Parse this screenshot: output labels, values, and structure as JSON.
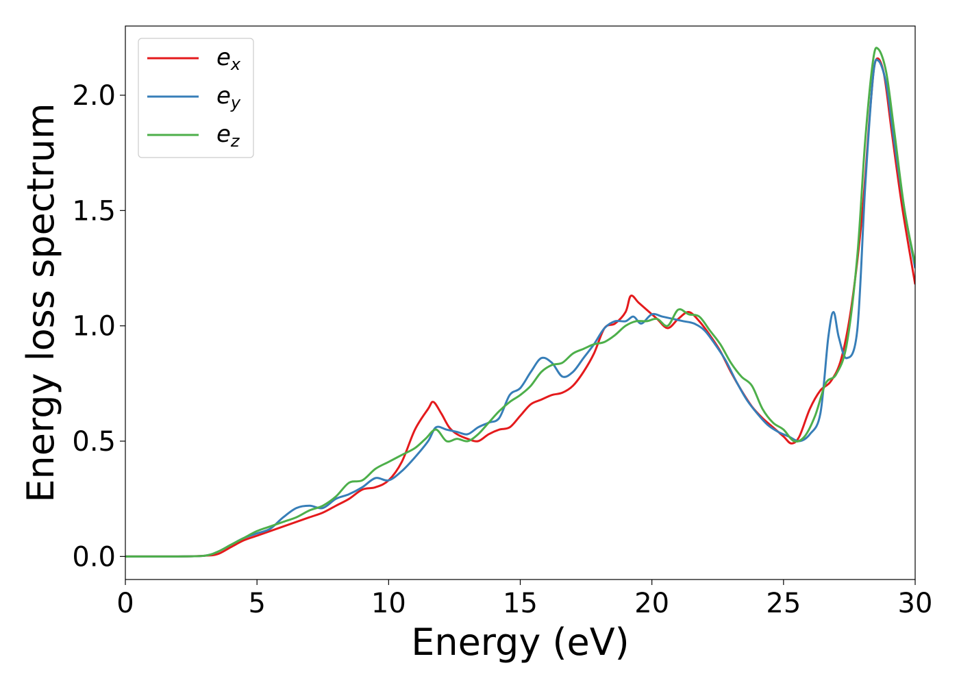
{
  "chart_data": {
    "type": "line",
    "xlabel": "Energy (eV)",
    "ylabel": "Energy loss spectrum",
    "xlim": [
      0,
      30
    ],
    "ylim": [
      -0.1,
      2.3
    ],
    "x_ticks": [
      0,
      5,
      10,
      15,
      20,
      25,
      30
    ],
    "y_ticks": [
      0.0,
      0.5,
      1.0,
      1.5,
      2.0
    ],
    "x_tick_labels": [
      "0",
      "5",
      "10",
      "15",
      "20",
      "25",
      "30"
    ],
    "y_tick_labels": [
      "0.0",
      "0.5",
      "1.0",
      "1.5",
      "2.0"
    ],
    "grid": false,
    "legend_position": "top-left",
    "series": [
      {
        "name": "e_x",
        "label_base": "e",
        "label_sub": "x",
        "color": "#e41a1c",
        "points": [
          [
            0,
            0
          ],
          [
            1,
            0
          ],
          [
            2,
            0
          ],
          [
            3,
            0.003
          ],
          [
            3.5,
            0.01
          ],
          [
            4,
            0.04
          ],
          [
            4.5,
            0.07
          ],
          [
            5,
            0.09
          ],
          [
            5.5,
            0.11
          ],
          [
            6,
            0.13
          ],
          [
            6.5,
            0.15
          ],
          [
            7,
            0.17
          ],
          [
            7.5,
            0.19
          ],
          [
            8,
            0.22
          ],
          [
            8.5,
            0.25
          ],
          [
            9,
            0.29
          ],
          [
            9.5,
            0.3
          ],
          [
            10,
            0.33
          ],
          [
            10.5,
            0.41
          ],
          [
            11,
            0.55
          ],
          [
            11.5,
            0.64
          ],
          [
            11.7,
            0.67
          ],
          [
            12,
            0.62
          ],
          [
            12.3,
            0.56
          ],
          [
            12.6,
            0.53
          ],
          [
            13,
            0.51
          ],
          [
            13.4,
            0.5
          ],
          [
            13.8,
            0.53
          ],
          [
            14.2,
            0.55
          ],
          [
            14.6,
            0.56
          ],
          [
            15,
            0.61
          ],
          [
            15.4,
            0.66
          ],
          [
            15.8,
            0.68
          ],
          [
            16.2,
            0.7
          ],
          [
            16.6,
            0.71
          ],
          [
            17,
            0.74
          ],
          [
            17.4,
            0.8
          ],
          [
            17.8,
            0.88
          ],
          [
            18.2,
            0.99
          ],
          [
            18.6,
            1.01
          ],
          [
            19,
            1.06
          ],
          [
            19.2,
            1.13
          ],
          [
            19.5,
            1.1
          ],
          [
            19.9,
            1.06
          ],
          [
            20.2,
            1.03
          ],
          [
            20.6,
            0.99
          ],
          [
            21,
            1.03
          ],
          [
            21.4,
            1.06
          ],
          [
            21.8,
            1.02
          ],
          [
            22.2,
            0.96
          ],
          [
            22.6,
            0.89
          ],
          [
            23,
            0.8
          ],
          [
            23.4,
            0.72
          ],
          [
            23.8,
            0.65
          ],
          [
            24.2,
            0.6
          ],
          [
            24.6,
            0.56
          ],
          [
            25,
            0.52
          ],
          [
            25.3,
            0.49
          ],
          [
            25.6,
            0.52
          ],
          [
            26,
            0.64
          ],
          [
            26.4,
            0.72
          ],
          [
            26.8,
            0.76
          ],
          [
            27.2,
            0.86
          ],
          [
            27.6,
            1.1
          ],
          [
            28,
            1.5
          ],
          [
            28.3,
            1.95
          ],
          [
            28.5,
            2.15
          ],
          [
            28.8,
            2.1
          ],
          [
            29.1,
            1.85
          ],
          [
            29.5,
            1.52
          ],
          [
            30,
            1.18
          ]
        ]
      },
      {
        "name": "e_y",
        "label_base": "e",
        "label_sub": "y",
        "color": "#377eb8",
        "points": [
          [
            0,
            0
          ],
          [
            1,
            0
          ],
          [
            2,
            0
          ],
          [
            3,
            0.003
          ],
          [
            3.5,
            0.02
          ],
          [
            4,
            0.05
          ],
          [
            4.5,
            0.08
          ],
          [
            5,
            0.1
          ],
          [
            5.5,
            0.12
          ],
          [
            6,
            0.17
          ],
          [
            6.5,
            0.21
          ],
          [
            7,
            0.22
          ],
          [
            7.5,
            0.21
          ],
          [
            8,
            0.25
          ],
          [
            8.5,
            0.27
          ],
          [
            9,
            0.3
          ],
          [
            9.5,
            0.34
          ],
          [
            10,
            0.33
          ],
          [
            10.5,
            0.37
          ],
          [
            11,
            0.43
          ],
          [
            11.5,
            0.5
          ],
          [
            11.8,
            0.56
          ],
          [
            12.2,
            0.55
          ],
          [
            12.6,
            0.54
          ],
          [
            13,
            0.53
          ],
          [
            13.4,
            0.56
          ],
          [
            13.8,
            0.58
          ],
          [
            14.2,
            0.6
          ],
          [
            14.6,
            0.7
          ],
          [
            15,
            0.73
          ],
          [
            15.4,
            0.8
          ],
          [
            15.8,
            0.86
          ],
          [
            16.2,
            0.84
          ],
          [
            16.6,
            0.78
          ],
          [
            17,
            0.8
          ],
          [
            17.4,
            0.86
          ],
          [
            17.8,
            0.92
          ],
          [
            18.2,
            0.99
          ],
          [
            18.6,
            1.02
          ],
          [
            19,
            1.02
          ],
          [
            19.3,
            1.04
          ],
          [
            19.6,
            1.01
          ],
          [
            20,
            1.05
          ],
          [
            20.4,
            1.04
          ],
          [
            20.8,
            1.03
          ],
          [
            21.2,
            1.02
          ],
          [
            21.6,
            1.01
          ],
          [
            22,
            0.98
          ],
          [
            22.4,
            0.92
          ],
          [
            22.8,
            0.85
          ],
          [
            23.2,
            0.76
          ],
          [
            23.6,
            0.68
          ],
          [
            24,
            0.62
          ],
          [
            24.4,
            0.57
          ],
          [
            24.8,
            0.54
          ],
          [
            25.2,
            0.52
          ],
          [
            25.6,
            0.5
          ],
          [
            26,
            0.53
          ],
          [
            26.4,
            0.62
          ],
          [
            26.7,
            0.95
          ],
          [
            26.9,
            1.06
          ],
          [
            27.1,
            0.95
          ],
          [
            27.4,
            0.86
          ],
          [
            27.8,
            0.98
          ],
          [
            28.1,
            1.6
          ],
          [
            28.4,
            2.08
          ],
          [
            28.6,
            2.15
          ],
          [
            28.9,
            2.05
          ],
          [
            29.2,
            1.8
          ],
          [
            29.6,
            1.5
          ],
          [
            30,
            1.25
          ]
        ]
      },
      {
        "name": "e_z",
        "label_base": "e",
        "label_sub": "z",
        "color": "#4daf4a",
        "points": [
          [
            0,
            0
          ],
          [
            1,
            0
          ],
          [
            2,
            0
          ],
          [
            3,
            0.003
          ],
          [
            3.5,
            0.02
          ],
          [
            4,
            0.05
          ],
          [
            4.5,
            0.08
          ],
          [
            5,
            0.11
          ],
          [
            5.5,
            0.13
          ],
          [
            6,
            0.15
          ],
          [
            6.5,
            0.17
          ],
          [
            7,
            0.2
          ],
          [
            7.5,
            0.22
          ],
          [
            8,
            0.26
          ],
          [
            8.5,
            0.32
          ],
          [
            9,
            0.33
          ],
          [
            9.5,
            0.38
          ],
          [
            10,
            0.41
          ],
          [
            10.5,
            0.44
          ],
          [
            11,
            0.47
          ],
          [
            11.4,
            0.51
          ],
          [
            11.8,
            0.55
          ],
          [
            12.2,
            0.5
          ],
          [
            12.6,
            0.51
          ],
          [
            13,
            0.5
          ],
          [
            13.4,
            0.53
          ],
          [
            13.8,
            0.58
          ],
          [
            14.2,
            0.63
          ],
          [
            14.6,
            0.67
          ],
          [
            15,
            0.7
          ],
          [
            15.4,
            0.74
          ],
          [
            15.8,
            0.8
          ],
          [
            16.2,
            0.83
          ],
          [
            16.6,
            0.84
          ],
          [
            17,
            0.88
          ],
          [
            17.4,
            0.9
          ],
          [
            17.8,
            0.92
          ],
          [
            18.2,
            0.93
          ],
          [
            18.6,
            0.96
          ],
          [
            19,
            1.0
          ],
          [
            19.4,
            1.02
          ],
          [
            19.8,
            1.02
          ],
          [
            20.2,
            1.03
          ],
          [
            20.6,
            1.0
          ],
          [
            21,
            1.07
          ],
          [
            21.4,
            1.05
          ],
          [
            21.8,
            1.04
          ],
          [
            22.2,
            0.98
          ],
          [
            22.6,
            0.92
          ],
          [
            23,
            0.84
          ],
          [
            23.4,
            0.78
          ],
          [
            23.8,
            0.74
          ],
          [
            24.2,
            0.64
          ],
          [
            24.6,
            0.58
          ],
          [
            25,
            0.55
          ],
          [
            25.4,
            0.5
          ],
          [
            25.8,
            0.52
          ],
          [
            26.2,
            0.61
          ],
          [
            26.6,
            0.75
          ],
          [
            27,
            0.79
          ],
          [
            27.4,
            0.92
          ],
          [
            27.8,
            1.3
          ],
          [
            28.1,
            1.8
          ],
          [
            28.4,
            2.15
          ],
          [
            28.6,
            2.2
          ],
          [
            28.9,
            2.1
          ],
          [
            29.2,
            1.85
          ],
          [
            29.6,
            1.5
          ],
          [
            30,
            1.27
          ]
        ]
      }
    ]
  }
}
